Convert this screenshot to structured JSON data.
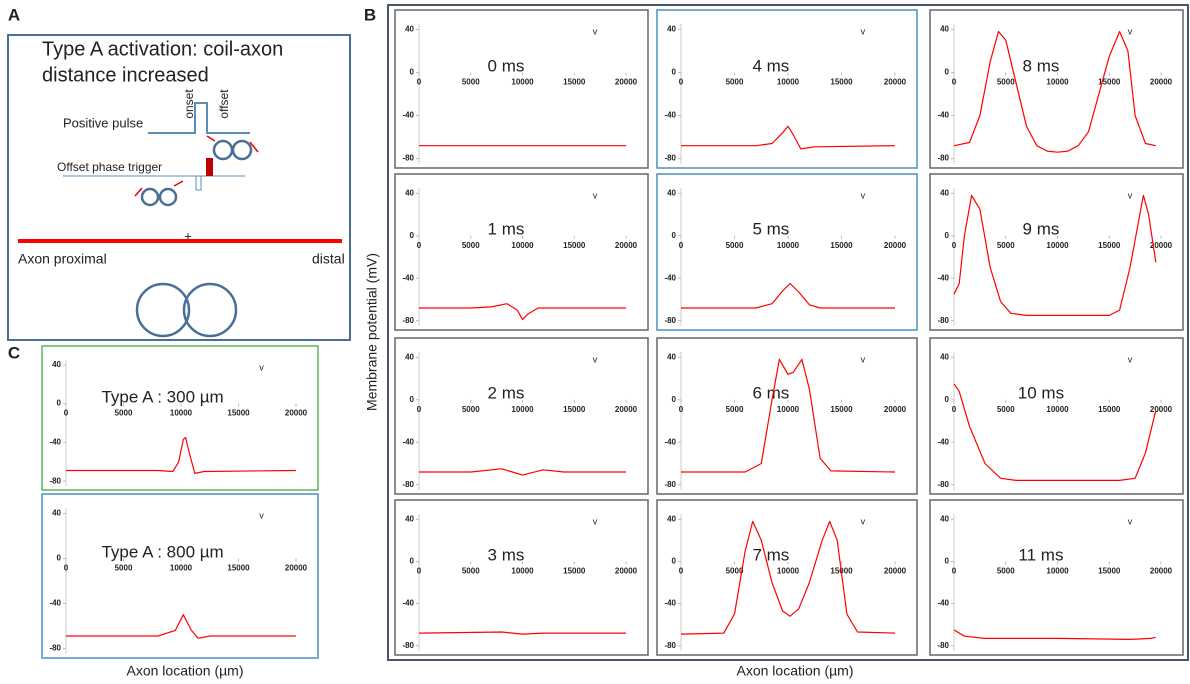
{
  "panel_a": {
    "label": "A",
    "title": [
      "Type A activation: coil-axon",
      "distance increased"
    ],
    "pulse": "Positive pulse",
    "onset": "onset",
    "offset": "offset",
    "trigger": "Offset phase trigger",
    "cross": "+",
    "proximal": "Axon proximal",
    "distal": "distal"
  },
  "panel_labels": {
    "B": "B",
    "C": "C"
  },
  "axis_labels": {
    "y": "Membrane potential (mV)",
    "x_b": "Axon location (µm)",
    "x_c": "Axon location (µm)"
  },
  "chart_data": [
    {
      "type": "line",
      "title": "0 ms",
      "x": [
        0,
        5000,
        10000,
        15000,
        20000
      ],
      "series": [
        {
          "color": "#ff0000",
          "values": [
            -68,
            -68,
            -68,
            -68,
            -68
          ]
        }
      ],
      "xlim": [
        0,
        20000
      ],
      "ylim": [
        -85,
        45
      ],
      "xticks": [
        0,
        5000,
        10000,
        15000,
        20000
      ],
      "yticks": [
        40,
        0,
        -40,
        -80
      ],
      "annotation": "v"
    },
    {
      "type": "line",
      "title": "1 ms",
      "x": [
        0,
        5000,
        7000,
        8500,
        9500,
        10000,
        10500,
        11500,
        13000,
        20000
      ],
      "series": [
        {
          "color": "#ff0000",
          "values": [
            -68,
            -68,
            -67,
            -64,
            -70,
            -79,
            -74,
            -68,
            -68,
            -68
          ]
        }
      ],
      "xlim": [
        0,
        20000
      ],
      "ylim": [
        -85,
        45
      ],
      "xticks": [
        0,
        5000,
        10000,
        15000,
        20000
      ],
      "yticks": [
        40,
        0,
        -40,
        -80
      ],
      "annotation": "v"
    },
    {
      "type": "line",
      "title": "2 ms",
      "x": [
        0,
        5000,
        8000,
        10000,
        12000,
        14000,
        20000
      ],
      "series": [
        {
          "color": "#ff0000",
          "values": [
            -68,
            -68,
            -65,
            -71,
            -66,
            -68,
            -68
          ]
        }
      ],
      "xlim": [
        0,
        20000
      ],
      "ylim": [
        -85,
        45
      ],
      "xticks": [
        0,
        5000,
        10000,
        15000,
        20000
      ],
      "yticks": [
        40,
        0,
        -40,
        -80
      ],
      "annotation": "v"
    },
    {
      "type": "line",
      "title": "3 ms",
      "x": [
        0,
        8000,
        10000,
        12000,
        20000
      ],
      "series": [
        {
          "color": "#ff0000",
          "values": [
            -68,
            -67,
            -69,
            -68,
            -68
          ]
        }
      ],
      "xlim": [
        0,
        20000
      ],
      "ylim": [
        -85,
        45
      ],
      "xticks": [
        0,
        5000,
        10000,
        15000,
        20000
      ],
      "yticks": [
        40,
        0,
        -40,
        -80
      ],
      "annotation": "v"
    },
    {
      "type": "line",
      "title": "4 ms",
      "x": [
        0,
        7000,
        8500,
        9500,
        10000,
        10500,
        11200,
        12500,
        20000
      ],
      "series": [
        {
          "color": "#ff0000",
          "values": [
            -68,
            -68,
            -66,
            -56,
            -50,
            -58,
            -71,
            -69,
            -68
          ]
        }
      ],
      "xlim": [
        0,
        20000
      ],
      "ylim": [
        -85,
        45
      ],
      "xticks": [
        0,
        5000,
        10000,
        15000,
        20000
      ],
      "yticks": [
        40,
        0,
        -40,
        -80
      ],
      "annotation": "v"
    },
    {
      "type": "line",
      "title": "5 ms",
      "x": [
        0,
        7000,
        8500,
        9500,
        10200,
        11000,
        12000,
        13000,
        20000
      ],
      "series": [
        {
          "color": "#ff0000",
          "values": [
            -68,
            -68,
            -64,
            -52,
            -45,
            -53,
            -65,
            -68,
            -68
          ]
        }
      ],
      "xlim": [
        0,
        20000
      ],
      "ylim": [
        -85,
        45
      ],
      "xticks": [
        0,
        5000,
        10000,
        15000,
        20000
      ],
      "yticks": [
        40,
        0,
        -40,
        -80
      ],
      "annotation": "v"
    },
    {
      "type": "line",
      "title": "6 ms",
      "x": [
        0,
        6000,
        7500,
        8500,
        9200,
        10000,
        10500,
        11300,
        12000,
        13000,
        14000,
        20000
      ],
      "series": [
        {
          "color": "#ff0000",
          "values": [
            -68,
            -68,
            -60,
            0,
            38,
            24,
            26,
            38,
            10,
            -55,
            -67,
            -68
          ]
        }
      ],
      "xlim": [
        0,
        20000
      ],
      "ylim": [
        -85,
        45
      ],
      "xticks": [
        0,
        5000,
        10000,
        15000,
        20000
      ],
      "yticks": [
        40,
        0,
        -40,
        -80
      ],
      "annotation": "v"
    },
    {
      "type": "line",
      "title": "7 ms",
      "x": [
        0,
        4000,
        5000,
        6000,
        6700,
        7500,
        8500,
        9500,
        10200,
        11000,
        12000,
        13200,
        13900,
        14600,
        15500,
        16500,
        20000
      ],
      "series": [
        {
          "color": "#ff0000",
          "values": [
            -69,
            -68,
            -50,
            10,
            38,
            20,
            -20,
            -47,
            -52,
            -45,
            -20,
            20,
            38,
            20,
            -50,
            -67,
            -68
          ]
        }
      ],
      "xlim": [
        0,
        20000
      ],
      "ylim": [
        -85,
        45
      ],
      "xticks": [
        0,
        5000,
        10000,
        15000,
        20000
      ],
      "yticks": [
        40,
        0,
        -40,
        -80
      ],
      "annotation": "v"
    },
    {
      "type": "line",
      "title": "8 ms",
      "x": [
        0,
        1500,
        2500,
        3500,
        4300,
        5000,
        6000,
        7000,
        8000,
        9000,
        10000,
        11000,
        12000,
        13000,
        14000,
        15000,
        16000,
        16800,
        17500,
        18500,
        19500
      ],
      "series": [
        {
          "color": "#ff0000",
          "values": [
            -68,
            -65,
            -40,
            10,
            38,
            30,
            -10,
            -50,
            -68,
            -73,
            -74,
            -73,
            -68,
            -55,
            -20,
            15,
            38,
            20,
            -40,
            -66,
            -68
          ]
        }
      ],
      "xlim": [
        0,
        20000
      ],
      "ylim": [
        -85,
        45
      ],
      "xticks": [
        0,
        5000,
        10000,
        15000,
        20000
      ],
      "yticks": [
        40,
        0,
        -40,
        -80
      ],
      "annotation": "v"
    },
    {
      "type": "line",
      "title": "9 ms",
      "x": [
        0,
        500,
        1000,
        1700,
        2500,
        3500,
        4500,
        5500,
        7000,
        15000,
        16000,
        17000,
        18300,
        18800,
        19500
      ],
      "series": [
        {
          "color": "#ff0000",
          "values": [
            -55,
            -45,
            0,
            38,
            25,
            -30,
            -62,
            -73,
            -75,
            -75,
            -70,
            -30,
            38,
            20,
            -25
          ]
        }
      ],
      "xlim": [
        0,
        20000
      ],
      "ylim": [
        -85,
        45
      ],
      "xticks": [
        0,
        5000,
        10000,
        15000,
        20000
      ],
      "yticks": [
        40,
        0,
        -40,
        -80
      ],
      "annotation": "v"
    },
    {
      "type": "line",
      "title": "10 ms",
      "x": [
        0,
        500,
        1500,
        3000,
        4500,
        6000,
        16000,
        17500,
        18500,
        19500
      ],
      "series": [
        {
          "color": "#ff0000",
          "values": [
            15,
            8,
            -25,
            -60,
            -74,
            -76,
            -76,
            -74,
            -50,
            -10
          ]
        }
      ],
      "xlim": [
        0,
        20000
      ],
      "ylim": [
        -85,
        45
      ],
      "xticks": [
        0,
        5000,
        10000,
        15000,
        20000
      ],
      "yticks": [
        40,
        0,
        -40,
        -80
      ],
      "annotation": "v"
    },
    {
      "type": "line",
      "title": "11 ms",
      "x": [
        0,
        1000,
        3000,
        10000,
        17000,
        19000,
        19500
      ],
      "series": [
        {
          "color": "#ff0000",
          "values": [
            -65,
            -71,
            -73,
            -73,
            -74,
            -73,
            -72
          ]
        }
      ],
      "xlim": [
        0,
        20000
      ],
      "ylim": [
        -85,
        45
      ],
      "xticks": [
        0,
        5000,
        10000,
        15000,
        20000
      ],
      "yticks": [
        40,
        0,
        -40,
        -80
      ],
      "annotation": "v"
    },
    {
      "type": "line",
      "title": "Type A : 300 µm",
      "x": [
        0,
        8000,
        9300,
        9800,
        10200,
        10400,
        10700,
        11200,
        12000,
        20000
      ],
      "series": [
        {
          "color": "#ff0000",
          "values": [
            -69,
            -69,
            -70,
            -60,
            -37,
            -35,
            -50,
            -72,
            -70,
            -69
          ]
        }
      ],
      "xlim": [
        0,
        20000
      ],
      "ylim": [
        -85,
        45
      ],
      "xticks": [
        0,
        5000,
        10000,
        15000,
        20000
      ],
      "yticks": [
        40,
        0,
        -40,
        -80
      ],
      "annotation": "v"
    },
    {
      "type": "line",
      "title": "Type A : 800 µm",
      "x": [
        0,
        8000,
        9500,
        10200,
        10900,
        11500,
        12500,
        20000
      ],
      "series": [
        {
          "color": "#ff0000",
          "values": [
            -69,
            -69,
            -64,
            -50,
            -64,
            -71,
            -69,
            -69
          ]
        }
      ],
      "xlim": [
        0,
        20000
      ],
      "ylim": [
        -85,
        45
      ],
      "xticks": [
        0,
        5000,
        10000,
        15000,
        20000
      ],
      "yticks": [
        40,
        0,
        -40,
        -80
      ],
      "annotation": "v"
    }
  ]
}
